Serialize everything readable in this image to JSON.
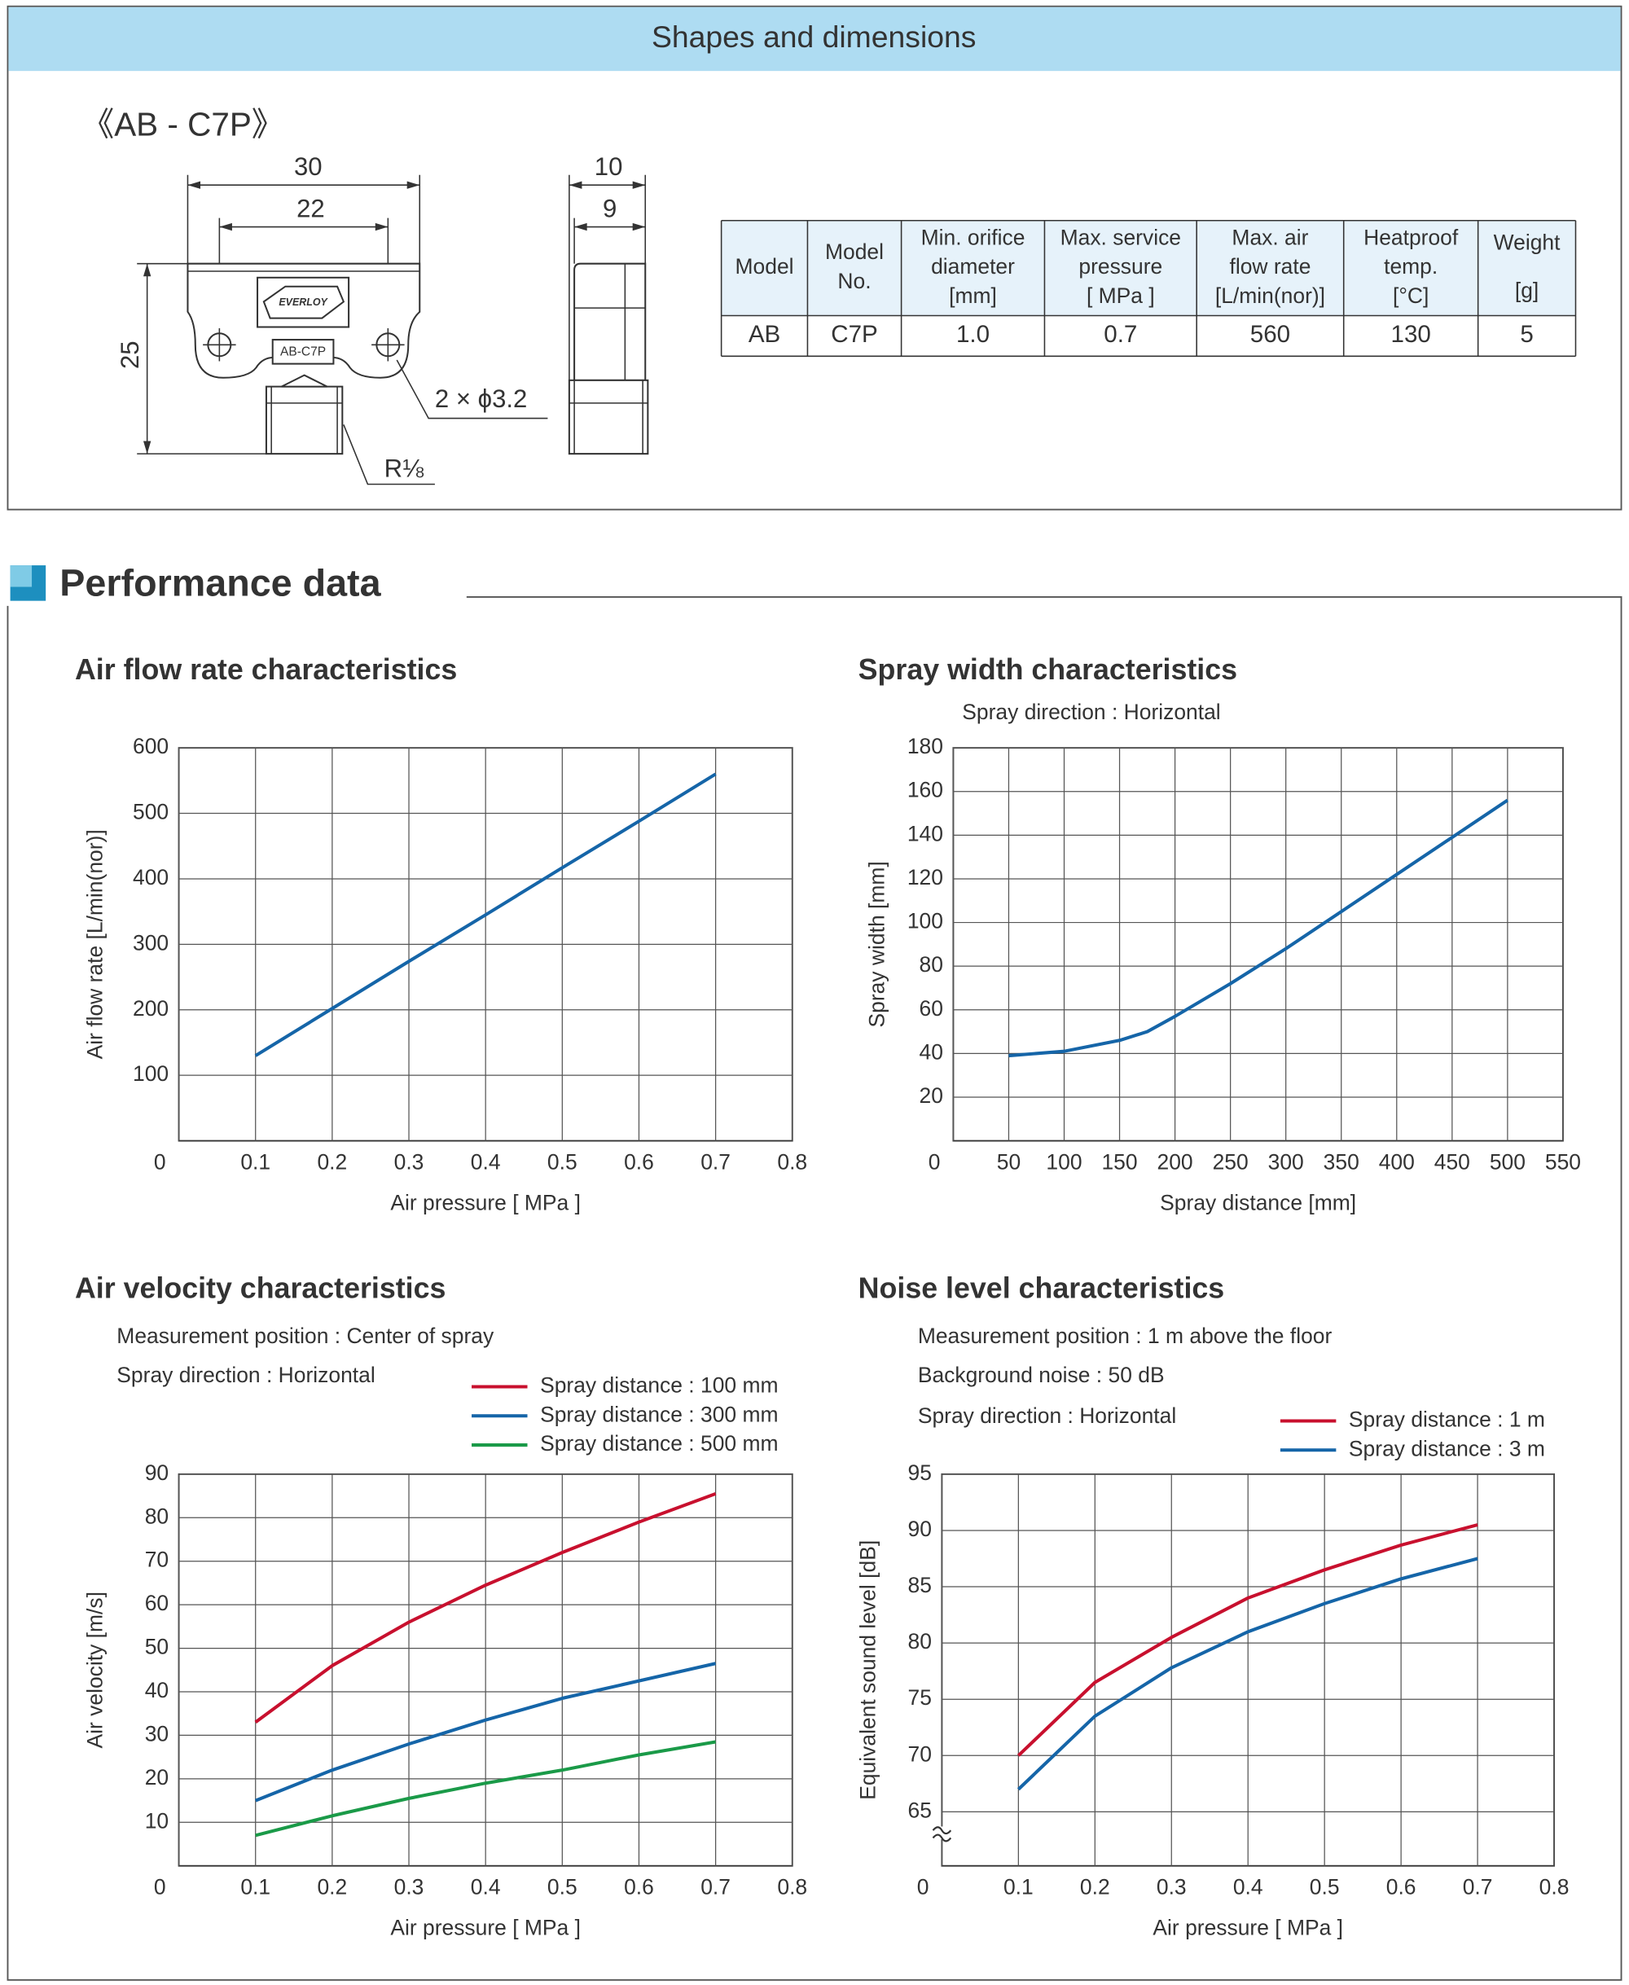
{
  "header": {
    "title": "Shapes and dimensions"
  },
  "model_title": "《AB - C7P》",
  "drawing": {
    "dim_width_outer": "30",
    "dim_width_inner": "22",
    "dim_height": "25",
    "dim_side_outer": "10",
    "dim_side_inner": "9",
    "hole_label": "2 × ϕ3.2",
    "thread_label": "R⅛",
    "logo": "EVERLOY",
    "plate_label": "AB-C7P"
  },
  "table": {
    "headers": [
      [
        "Model"
      ],
      [
        "Model",
        "No."
      ],
      [
        "Min. orifice",
        "diameter",
        "[mm]"
      ],
      [
        "Max. service",
        "pressure",
        "[ MPa ]"
      ],
      [
        "Max. air",
        "flow rate",
        "[L/min(nor)]"
      ],
      [
        "Heatproof",
        "temp.",
        "[°C]"
      ],
      [
        "Weight",
        "[g]"
      ]
    ],
    "rows": [
      [
        "AB",
        "C7P",
        "1.0",
        "0.7",
        "560",
        "130",
        "5"
      ]
    ]
  },
  "section_title": "Performance data",
  "chart_data": [
    {
      "type": "line",
      "title": "Air flow rate characteristics",
      "x_label": "Air pressure [ MPa ]",
      "y_label": "Air flow rate [L/min(nor)]",
      "x": [
        0.1,
        0.2,
        0.3,
        0.4,
        0.5,
        0.6,
        0.7
      ],
      "values": [
        130,
        202,
        274,
        345,
        417,
        488,
        560
      ],
      "color": "#1565a8",
      "xlim": [
        0,
        0.8
      ],
      "xticks": [
        0,
        0.1,
        0.2,
        0.3,
        0.4,
        0.5,
        0.6,
        0.7,
        0.8
      ],
      "ylim": [
        0,
        600
      ],
      "yticks": [
        100,
        200,
        300,
        400,
        500,
        600
      ],
      "grid": true
    },
    {
      "type": "line",
      "title": "Spray width characteristics",
      "notes": [
        "Spray direction : Horizontal"
      ],
      "x_label": "Spray distance [mm]",
      "y_label": "Spray width [mm]",
      "x": [
        50,
        100,
        150,
        175,
        200,
        250,
        300,
        350,
        400,
        450,
        500
      ],
      "values": [
        39,
        41,
        46,
        50,
        57,
        72,
        88,
        105,
        122,
        139,
        156
      ],
      "color": "#1565a8",
      "xlim": [
        0,
        550
      ],
      "xticks": [
        0,
        50,
        100,
        150,
        200,
        250,
        300,
        350,
        400,
        450,
        500,
        550
      ],
      "ylim": [
        0,
        180
      ],
      "yticks": [
        20,
        40,
        60,
        80,
        100,
        120,
        140,
        160,
        180
      ],
      "grid": true
    },
    {
      "type": "line",
      "title": "Air velocity characteristics",
      "notes": [
        "Measurement position : Center of spray",
        "Spray direction : Horizontal"
      ],
      "x_label": "Air pressure [ MPa ]",
      "y_label": "Air velocity [m/s]",
      "x": [
        0.1,
        0.2,
        0.3,
        0.4,
        0.5,
        0.6,
        0.7
      ],
      "series": [
        {
          "name": "Spray distance : 100 mm",
          "color": "#c8102e",
          "values": [
            33,
            46,
            56,
            64.5,
            72,
            79,
            85.5
          ]
        },
        {
          "name": "Spray distance : 300 mm",
          "color": "#1565a8",
          "values": [
            15,
            22,
            28,
            33.5,
            38.5,
            42.5,
            46.5
          ]
        },
        {
          "name": "Spray distance : 500 mm",
          "color": "#1a9a48",
          "values": [
            7,
            11.5,
            15.5,
            19,
            22,
            25.5,
            28.5
          ]
        }
      ],
      "xlim": [
        0,
        0.8
      ],
      "xticks": [
        0,
        0.1,
        0.2,
        0.3,
        0.4,
        0.5,
        0.6,
        0.7,
        0.8
      ],
      "ylim": [
        0,
        90
      ],
      "yticks": [
        10,
        20,
        30,
        40,
        50,
        60,
        70,
        80,
        90
      ],
      "grid": true
    },
    {
      "type": "line",
      "title": "Noise level characteristics",
      "notes": [
        "Measurement position : 1 m above the floor",
        "Background noise : 50 dB",
        "Spray direction : Horizontal"
      ],
      "x_label": "Air pressure [ MPa ]",
      "y_label": "Equivalent sound level [dB]",
      "x": [
        0.1,
        0.2,
        0.3,
        0.4,
        0.5,
        0.6,
        0.7
      ],
      "series": [
        {
          "name": "Spray distance : 1 m",
          "color": "#c8102e",
          "values": [
            70,
            76.5,
            80.5,
            84,
            86.5,
            88.7,
            90.5
          ]
        },
        {
          "name": "Spray distance : 3 m",
          "color": "#1565a8",
          "values": [
            67,
            73.5,
            77.8,
            81,
            83.5,
            85.7,
            87.5
          ]
        }
      ],
      "xlim": [
        0,
        0.8
      ],
      "xticks": [
        0,
        0.1,
        0.2,
        0.3,
        0.4,
        0.5,
        0.6,
        0.7,
        0.8
      ],
      "ylim": [
        60.2,
        95
      ],
      "yticks": [
        65,
        70,
        75,
        80,
        85,
        90,
        95
      ],
      "grid": true,
      "axis_break": true
    }
  ]
}
